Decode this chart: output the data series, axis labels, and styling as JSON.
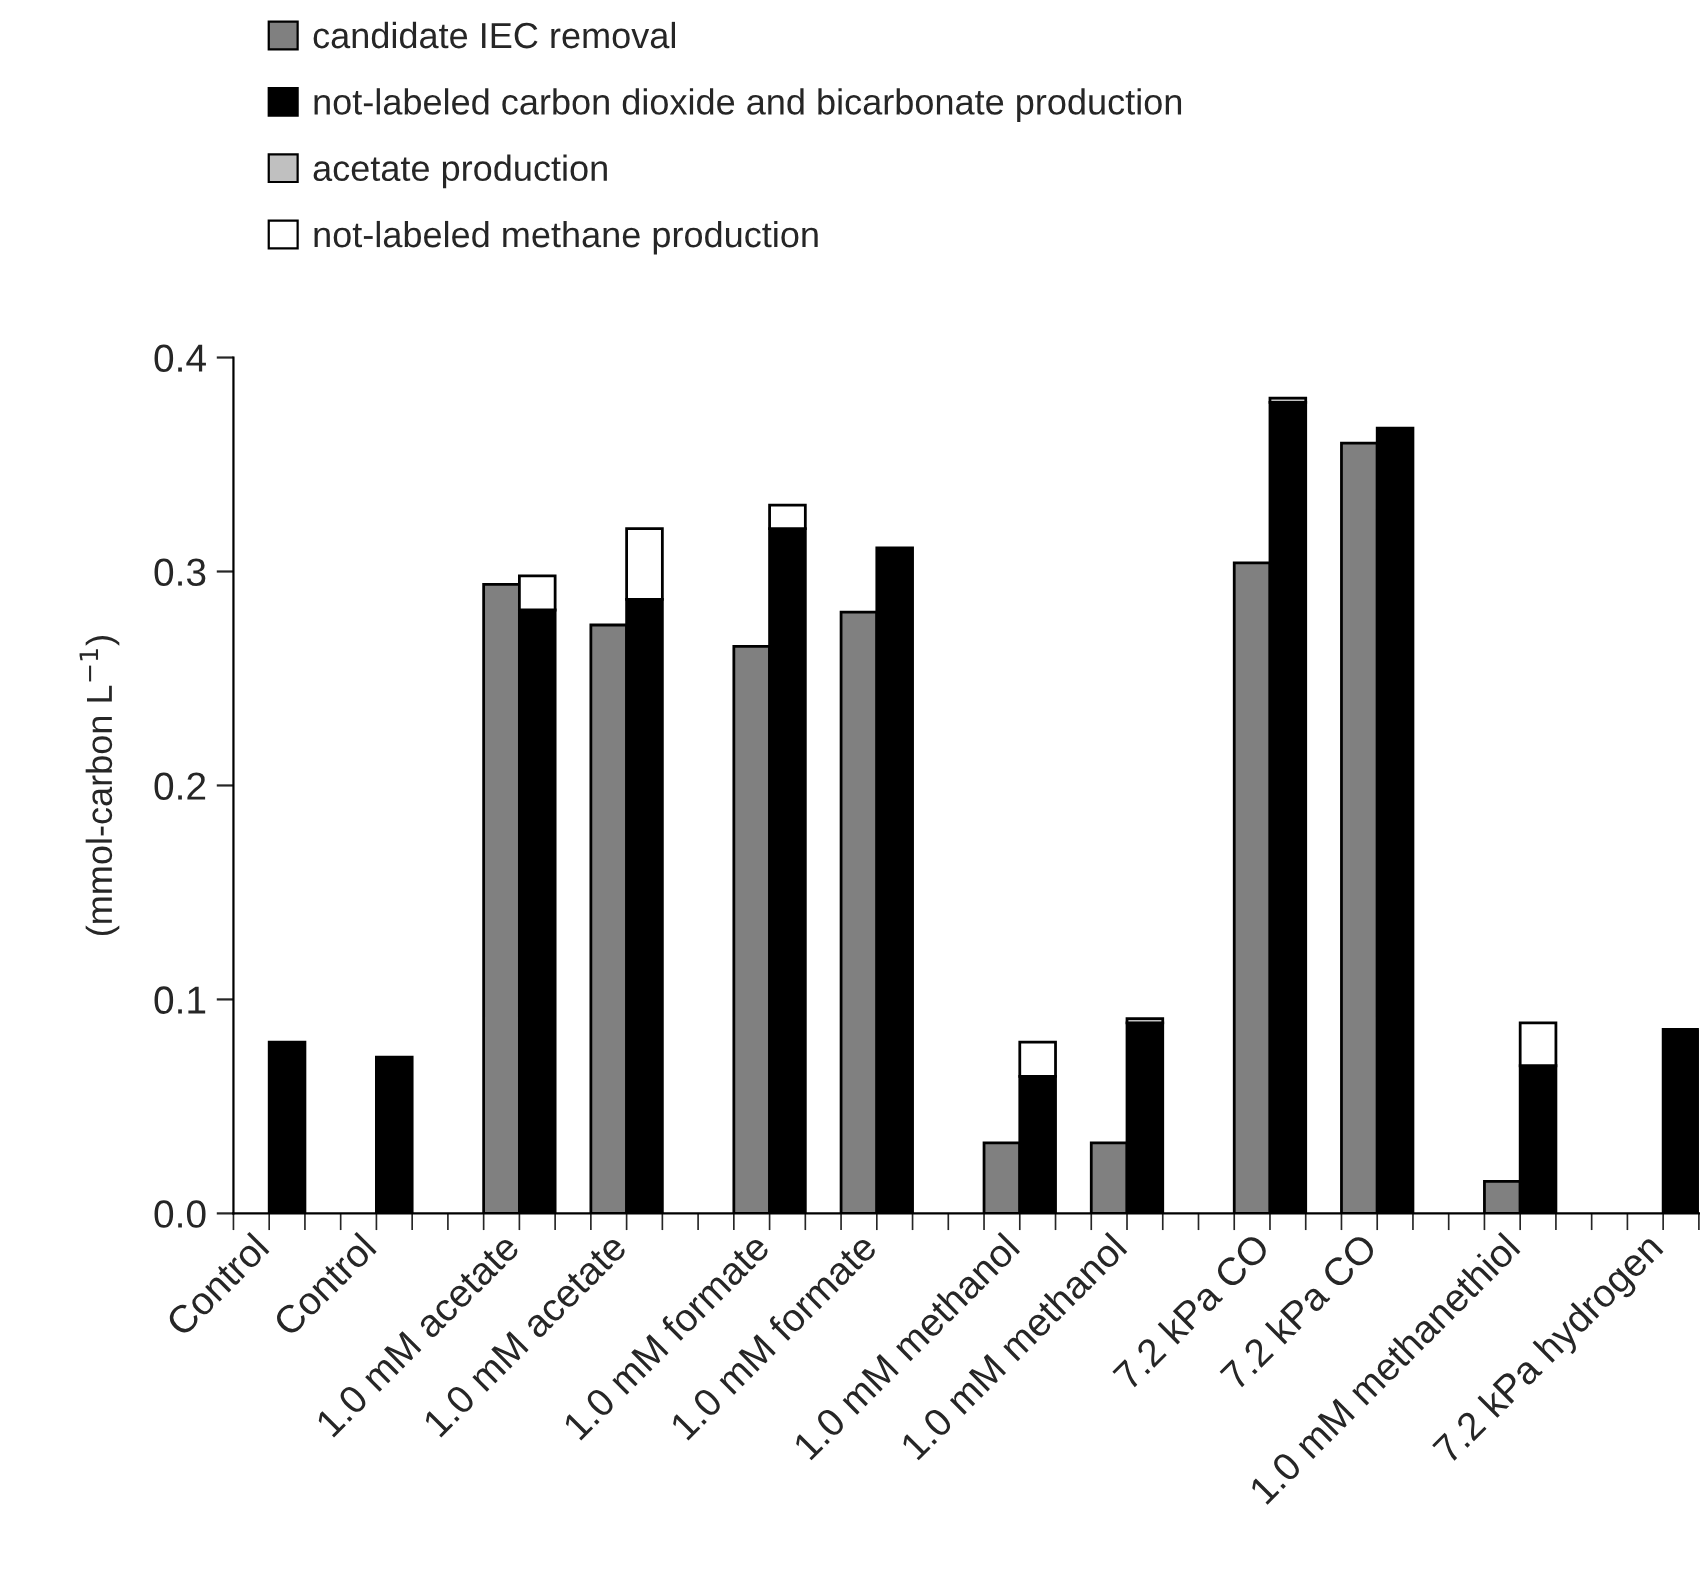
{
  "chart_data": {
    "type": "bar",
    "stacked": true,
    "ylabel": "(mmol-carbon L$^{−1}$)",
    "categories": [
      "Control",
      null,
      null,
      "Control",
      null,
      null,
      null,
      "1.0 mM acetate",
      null,
      null,
      "1.0 mM acetate",
      null,
      null,
      null,
      "1.0 mM formate",
      null,
      null,
      "1.0 mM formate",
      null,
      null,
      null,
      "1.0 mM methanol",
      null,
      null,
      "1.0 mM methanol",
      null,
      null,
      null,
      "7.2 kPa CO",
      null,
      null,
      "7.2 kPa CO",
      null,
      null,
      null,
      "1.0 mM methanethiol",
      null,
      null,
      null,
      "7.2 kPa hydrogen",
      null
    ],
    "series": [
      {
        "name": "candidate IEC removal",
        "color": "#808080",
        "values": [
          null,
          null,
          null,
          null,
          null,
          null,
          null,
          0.294,
          null,
          null,
          0.275,
          null,
          null,
          null,
          0.265,
          null,
          null,
          0.281,
          null,
          null,
          null,
          0.033,
          null,
          null,
          0.033,
          null,
          null,
          null,
          0.304,
          null,
          null,
          0.36,
          null,
          null,
          null,
          0.015,
          null,
          null,
          null,
          null,
          null
        ]
      },
      {
        "name": "not-labeled carbon dioxide and bicarbonate production",
        "color": "#000000",
        "values": [
          null,
          0.08,
          null,
          null,
          0.073,
          null,
          null,
          null,
          0.282,
          null,
          null,
          0.287,
          null,
          null,
          null,
          0.32,
          null,
          null,
          0.311,
          null,
          null,
          null,
          0.064,
          null,
          null,
          0.089,
          null,
          null,
          null,
          0.379,
          null,
          null,
          0.367,
          null,
          null,
          null,
          0.069,
          null,
          null,
          null,
          0.086
        ]
      },
      {
        "name": "acetate production",
        "color": "#c0c0c0",
        "values": [
          null,
          null,
          null,
          null,
          null,
          null,
          null,
          null,
          null,
          null,
          null,
          null,
          null,
          null,
          null,
          null,
          null,
          null,
          null,
          null,
          null,
          null,
          null,
          null,
          null,
          0.002,
          null,
          null,
          null,
          0.002,
          null,
          null,
          null,
          null,
          null,
          null,
          null,
          null,
          null,
          null,
          null
        ]
      },
      {
        "name": "not-labeled methane production",
        "color": "#ffffff",
        "values": [
          null,
          null,
          null,
          null,
          null,
          null,
          null,
          null,
          0.016,
          null,
          null,
          0.033,
          null,
          null,
          null,
          0.011,
          null,
          null,
          null,
          null,
          null,
          null,
          0.016,
          null,
          null,
          null,
          null,
          null,
          null,
          null,
          null,
          null,
          null,
          null,
          null,
          null,
          0.02,
          null,
          null,
          null,
          null
        ]
      }
    ],
    "ylim": [
      0,
      0.4
    ],
    "yticks": [
      {
        "value": 0,
        "label": "0.0"
      },
      {
        "value": 0.1,
        "label": "0.1"
      },
      {
        "value": 0.2,
        "label": "0.2"
      },
      {
        "value": 0.3,
        "label": "0.3"
      },
      {
        "value": 0.4,
        "label": "0.4"
      }
    ],
    "legend": "top",
    "grid": false
  }
}
